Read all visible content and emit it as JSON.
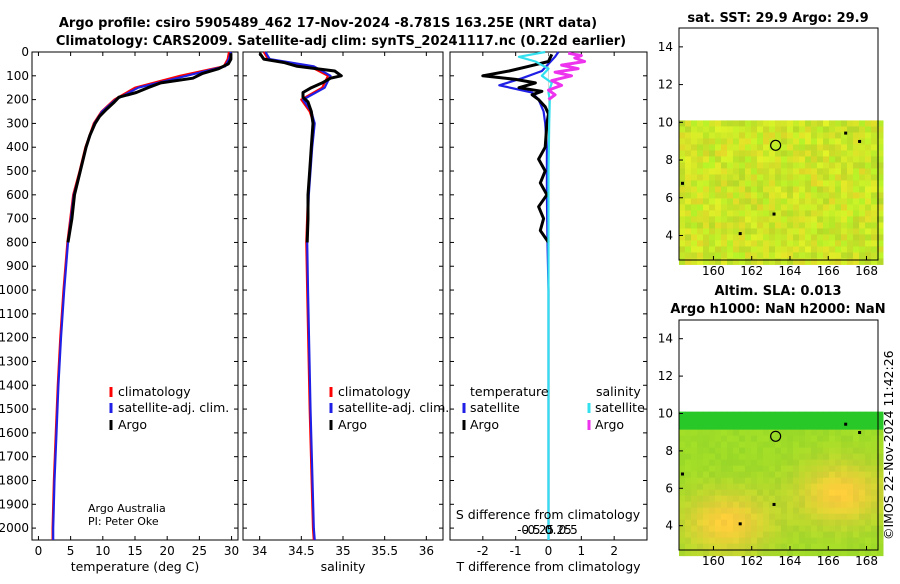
{
  "header": {
    "line1": "Argo profile: csiro 5905489_462 17-Nov-2024 -8.781S 163.25E (NRT data)",
    "line2": "Climatology: CARS2009. Satellite-adj clim: synTS_20241117.nc (0.22d earlier)"
  },
  "colors": {
    "climatology": "#ff0000",
    "satellite": "#1f1fe6",
    "argo": "#000000",
    "sat_salinity": "#33e0ee",
    "argo_salinity": "#ee33ee"
  },
  "depth_axis": {
    "ticks": [
      0,
      100,
      200,
      300,
      400,
      500,
      600,
      700,
      800,
      900,
      1000,
      1100,
      1200,
      1300,
      1400,
      1500,
      1600,
      1700,
      1800,
      1900,
      2000
    ],
    "tick_labels": [
      "0",
      "100",
      "200",
      "300",
      "400",
      "500",
      "600",
      "700",
      "800",
      "900",
      "1000",
      "1100",
      "1200",
      "1300",
      "1400",
      "1500",
      "1600",
      "1700",
      "1800",
      "1900",
      "2000"
    ],
    "range": [
      0,
      2050
    ]
  },
  "chart_data": [
    {
      "type": "line",
      "name": "temperature",
      "xlabel": "temperature (deg C)",
      "xlim": [
        -1,
        31
      ],
      "xticks": [
        0,
        5,
        10,
        15,
        20,
        25,
        30
      ],
      "xtick_labels": [
        "0",
        "5",
        "10",
        "15",
        "20",
        "25",
        "30"
      ],
      "legend": {
        "placement": "middle-right",
        "entries": [
          "climatology",
          "satellite-adj. clim.",
          "Argo"
        ]
      },
      "annotation": [
        "Argo Australia",
        "PI: Peter Oke"
      ],
      "series": [
        {
          "name": "climatology",
          "depth": [
            0,
            30,
            60,
            100,
            150,
            200,
            250,
            300,
            400,
            500,
            600,
            800,
            1000,
            1200,
            1400,
            1600,
            1800,
            2000,
            2050
          ],
          "values": [
            29.6,
            29.4,
            28.8,
            22,
            15,
            11.8,
            9.8,
            8.6,
            7.3,
            6.4,
            5.4,
            4.5,
            3.9,
            3.4,
            3.0,
            2.7,
            2.4,
            2.2,
            2.2
          ]
        },
        {
          "name": "satellite",
          "depth": [
            0,
            30,
            60,
            100,
            150,
            200,
            250,
            300,
            400,
            500,
            600,
            800,
            1000,
            1200,
            1400,
            1600,
            1800,
            2000,
            2050
          ],
          "values": [
            29.9,
            29.6,
            29,
            23,
            15.5,
            12,
            9.9,
            8.7,
            7.4,
            6.5,
            5.5,
            4.6,
            4.0,
            3.5,
            3.1,
            2.8,
            2.5,
            2.3,
            2.3
          ]
        },
        {
          "name": "Argo",
          "depth": [
            5,
            30,
            50,
            70,
            90,
            110,
            130,
            150,
            170,
            190,
            210,
            240,
            270,
            300,
            350,
            400,
            500,
            600,
            700,
            800
          ],
          "values": [
            29.9,
            29.9,
            29.5,
            28,
            25.5,
            24,
            19,
            17,
            15.2,
            12.5,
            11.8,
            10.6,
            9.5,
            8.8,
            8.0,
            7.4,
            6.5,
            5.6,
            5.2,
            4.6
          ]
        }
      ]
    },
    {
      "type": "line",
      "name": "salinity",
      "xlabel": "salinity",
      "xlim": [
        33.8,
        36.2
      ],
      "xticks": [
        34,
        34.5,
        35,
        35.5,
        36
      ],
      "xtick_labels": [
        "34",
        "34.5",
        "35",
        "35.5",
        "36"
      ],
      "legend": {
        "placement": "middle-right",
        "entries": [
          "climatology",
          "satellite-adj. clim.",
          "Argo"
        ]
      },
      "series": [
        {
          "name": "climatology",
          "depth": [
            0,
            30,
            60,
            100,
            150,
            200,
            250,
            300,
            400,
            600,
            800,
            1000,
            1500,
            2000,
            2050
          ],
          "values": [
            34.05,
            34.1,
            34.6,
            34.82,
            34.75,
            34.5,
            34.6,
            34.65,
            34.62,
            34.58,
            34.56,
            34.57,
            34.6,
            34.64,
            34.65
          ]
        },
        {
          "name": "satellite",
          "depth": [
            0,
            30,
            60,
            100,
            150,
            200,
            250,
            300,
            400,
            600,
            800,
            1000,
            1500,
            2000,
            2050
          ],
          "values": [
            34.07,
            34.12,
            34.65,
            34.85,
            34.78,
            34.52,
            34.62,
            34.66,
            34.63,
            34.59,
            34.57,
            34.58,
            34.61,
            34.65,
            34.66
          ]
        },
        {
          "name": "Argo",
          "depth": [
            5,
            30,
            45,
            60,
            80,
            100,
            110,
            130,
            150,
            170,
            190,
            210,
            250,
            300,
            400,
            500,
            600,
            700,
            800
          ],
          "values": [
            34.0,
            34.05,
            34.3,
            34.45,
            34.9,
            34.98,
            34.85,
            34.75,
            34.62,
            34.52,
            34.52,
            34.58,
            34.62,
            34.64,
            34.62,
            34.6,
            34.58,
            34.58,
            34.57
          ]
        }
      ]
    },
    {
      "type": "line",
      "name": "differences",
      "xlabel": "T difference from climatology",
      "top_axis_label": "S difference from climatology",
      "xlim": [
        -3,
        3
      ],
      "xticks": [
        -2,
        -1,
        0,
        1,
        2
      ],
      "xtick_labels": [
        "-2",
        "-1",
        "0",
        "1",
        "2"
      ],
      "s_ticks": [
        -0.5,
        -0.25,
        0,
        0.25,
        0.5
      ],
      "s_tick_labels": [
        "-0.5",
        "-0.25",
        "0",
        "0.25",
        "0.5"
      ],
      "legend": {
        "placement": "middle",
        "temperature_title": "temperature",
        "salinity_title": "salinity",
        "entries": [
          "satellite",
          "Argo",
          "satellite",
          "Argo"
        ]
      },
      "series": [
        {
          "name": "T satellite",
          "depth": [
            0,
            20,
            50,
            80,
            110,
            140,
            170,
            200,
            250,
            300,
            400,
            600,
            800,
            1000,
            1500,
            2000,
            2050
          ],
          "values": [
            0.3,
            0.2,
            0,
            -0.2,
            -0.8,
            -1.5,
            -0.5,
            -0.3,
            -0.15,
            -0.1,
            -0.05,
            -0.05,
            -0.03,
            0,
            0,
            0,
            0
          ]
        },
        {
          "name": "T Argo",
          "depth": [
            10,
            40,
            60,
            80,
            100,
            115,
            130,
            150,
            165,
            180,
            200,
            230,
            260,
            300,
            400,
            450,
            500,
            550,
            600,
            650,
            700,
            750,
            800
          ],
          "values": [
            0.1,
            0,
            -0.6,
            -1.2,
            -2.0,
            -1.0,
            -0.4,
            -0.9,
            -0.2,
            -0.5,
            -0.3,
            -0.1,
            0,
            -0.05,
            -0.1,
            -0.3,
            -0.1,
            -0.25,
            -0.05,
            -0.3,
            -0.15,
            -0.25,
            0
          ]
        },
        {
          "name": "S satellite",
          "depth": [
            0,
            20,
            40,
            70,
            100,
            130,
            170,
            200,
            300,
            500,
            800,
            1000,
            1500,
            2000,
            2050
          ],
          "values": [
            -0.05,
            -0.45,
            -0.2,
            0,
            -0.1,
            0.05,
            0,
            0.02,
            0.01,
            0,
            0,
            0,
            0,
            0,
            0
          ]
        },
        {
          "name": "S Argo",
          "depth": [
            5,
            15,
            25,
            40,
            55,
            70,
            85,
            100,
            120,
            140,
            160,
            180,
            200
          ],
          "values": [
            0.3,
            0.5,
            0.4,
            0.55,
            0.2,
            0.45,
            0.1,
            0.35,
            0.05,
            0.2,
            0,
            0.1,
            0
          ]
        }
      ]
    }
  ],
  "maps": [
    {
      "title": "sat. SST: 29.9 Argo: 29.9",
      "xticks": [
        "160",
        "162",
        "164",
        "166",
        "168"
      ],
      "yticks": [
        "14",
        "12",
        "10",
        "8",
        "6",
        "4"
      ]
    },
    {
      "title1": "Altim. SLA: 0.013",
      "title2": "Argo h1000: NaN h2000: NaN",
      "xticks": [
        "160",
        "162",
        "164",
        "166",
        "168"
      ],
      "yticks": [
        "14",
        "12",
        "10",
        "8",
        "6",
        "4"
      ]
    }
  ],
  "map_axes": {
    "lon_range": [
      158.2,
      168.6
    ],
    "lat_range": [
      2.7,
      15.0
    ],
    "lon_ticks": [
      160,
      162,
      164,
      166,
      168
    ],
    "lat_ticks": [
      14,
      12,
      10,
      8,
      6,
      4
    ],
    "data_lat_top": 10.1,
    "marker_lon": 163.25,
    "marker_lat": 8.781
  },
  "footer": {
    "stamp": "©IMOS 22-Nov-2024 11:42:26"
  }
}
